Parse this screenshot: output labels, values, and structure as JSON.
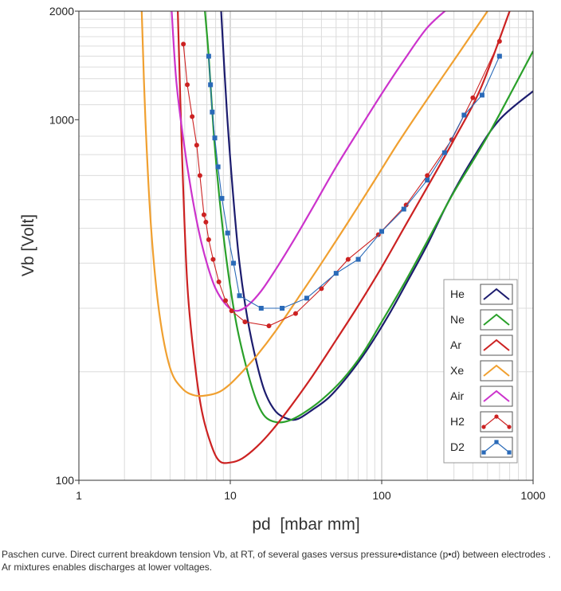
{
  "chart_data": {
    "type": "line",
    "xlabel": "pd  [mbar mm]",
    "ylabel": "Vb [Volt]",
    "x_scale": "log",
    "y_scale": "log",
    "xlim": [
      1,
      1000
    ],
    "ylim": [
      100,
      2000
    ],
    "x_ticks": [
      "1",
      "10",
      "100",
      "1000"
    ],
    "y_ticks": [
      "100",
      "1000",
      "2000"
    ],
    "grid": true,
    "legend_position": "right",
    "series": [
      {
        "name": "He",
        "color": "#1c1c6e",
        "marker": "none",
        "x": [
          8.7,
          9.5,
          10.5,
          11.5,
          13,
          15,
          17,
          20,
          24,
          28,
          35,
          45,
          60,
          80,
          110,
          150,
          200,
          280,
          400,
          600,
          1000
        ],
        "y": [
          2000,
          1050,
          600,
          400,
          280,
          210,
          175,
          155,
          148,
          148,
          157,
          170,
          195,
          230,
          285,
          360,
          450,
          600,
          780,
          1000,
          1200
        ]
      },
      {
        "name": "Ne",
        "color": "#2aa02a",
        "marker": "none",
        "x": [
          6.8,
          7.2,
          7.8,
          8.5,
          9.5,
          11,
          13,
          15,
          17,
          20,
          24,
          30,
          40,
          55,
          75,
          100,
          140,
          200,
          300,
          500,
          1000
        ],
        "y": [
          2000,
          1500,
          900,
          600,
          400,
          270,
          200,
          165,
          150,
          145,
          146,
          153,
          167,
          190,
          225,
          275,
          350,
          460,
          630,
          900,
          1550
        ]
      },
      {
        "name": "Ar",
        "color": "#cc2222",
        "marker": "none",
        "x": [
          4.5,
          4.8,
          5.2,
          5.8,
          6.5,
          7.5,
          8.5,
          10,
          12,
          15,
          19,
          25,
          35,
          50,
          70,
          100,
          140,
          200,
          300,
          450,
          700
        ],
        "y": [
          2000,
          800,
          350,
          215,
          155,
          125,
          113,
          112,
          115,
          124,
          138,
          160,
          195,
          245,
          305,
          390,
          500,
          650,
          880,
          1220,
          2000
        ]
      },
      {
        "name": "Xe",
        "color": "#f0a030",
        "marker": "none",
        "x": [
          2.6,
          2.75,
          3,
          3.4,
          4,
          4.8,
          5.8,
          7,
          8.5,
          10,
          12,
          15,
          20,
          28,
          40,
          60,
          90,
          130,
          200,
          320,
          500
        ],
        "y": [
          2000,
          1000,
          500,
          290,
          205,
          180,
          172,
          172,
          176,
          185,
          200,
          222,
          260,
          320,
          400,
          520,
          680,
          870,
          1140,
          1520,
          2000
        ]
      },
      {
        "name": "Air",
        "color": "#cc33cc",
        "marker": "none",
        "x": [
          4.1,
          4.4,
          4.9,
          5.5,
          6.2,
          7,
          8,
          9.5,
          11,
          13,
          16,
          20,
          26,
          35,
          50,
          70,
          100,
          140,
          200,
          280
        ],
        "y": [
          2000,
          1280,
          880,
          640,
          490,
          400,
          340,
          305,
          295,
          305,
          335,
          385,
          460,
          570,
          740,
          930,
          1180,
          1460,
          1800,
          2050
        ]
      },
      {
        "name": "H2",
        "color": "#cc2222",
        "marker": "circle",
        "x": [
          4.9,
          5.2,
          5.6,
          6.0,
          6.3,
          6.7,
          6.9,
          7.2,
          7.7,
          8.4,
          9.3,
          10.2,
          12.5,
          18,
          27,
          40,
          60,
          95,
          145,
          200,
          290,
          400,
          600
        ],
        "y": [
          1620,
          1250,
          1020,
          850,
          700,
          545,
          520,
          465,
          410,
          355,
          315,
          295,
          275,
          268,
          290,
          340,
          410,
          480,
          580,
          700,
          880,
          1150,
          1650
        ]
      },
      {
        "name": "D2",
        "color": "#2a6ab8",
        "marker": "square",
        "x": [
          7.2,
          7.4,
          7.6,
          7.9,
          8.3,
          8.8,
          9.6,
          10.5,
          11.5,
          16,
          22,
          32,
          50,
          70,
          100,
          140,
          200,
          260,
          350,
          460,
          600
        ],
        "y": [
          1500,
          1250,
          1050,
          890,
          740,
          605,
          485,
          400,
          325,
          300,
          300,
          320,
          375,
          410,
          490,
          565,
          680,
          810,
          1030,
          1170,
          1500
        ]
      }
    ]
  },
  "caption": "Paschen curve. Direct current breakdown tension Vb, at RT, of several gases versus pressure•distance (p•d) between electrodes . Ar mixtures enables discharges at lower voltages."
}
